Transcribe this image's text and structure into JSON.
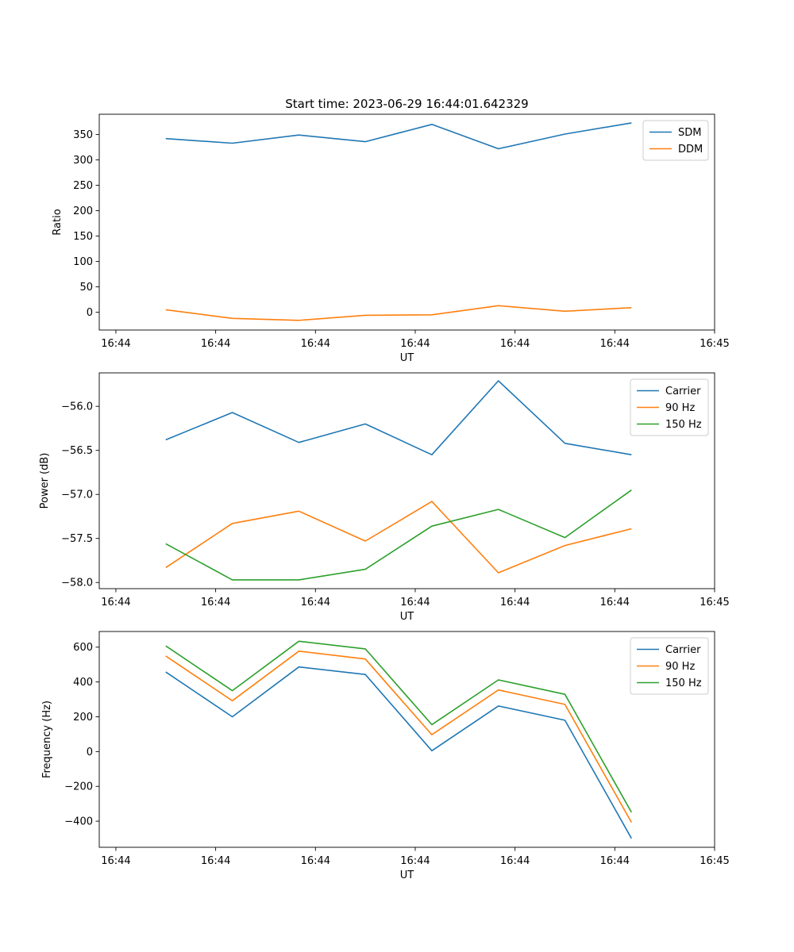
{
  "figure": {
    "title": "Start time: 2023-06-29 16:44:01.642329"
  },
  "colors": {
    "blue": "#1f77b4",
    "orange": "#ff7f0e",
    "green": "#2ca02c"
  },
  "chart_data": [
    {
      "type": "line",
      "title": "Start time: 2023-06-29 16:44:01.642329",
      "xlabel": "UT",
      "ylabel": "Ratio",
      "x": [
        1,
        2,
        3,
        4,
        5,
        6,
        7,
        8
      ],
      "xlim": [
        0,
        9.25
      ],
      "xticks": [
        0.25,
        1.75,
        3.25,
        4.75,
        6.25,
        7.75,
        9.25
      ],
      "xtick_labels": [
        "16:44",
        "16:44",
        "16:44",
        "16:44",
        "16:44",
        "16:44",
        "16:45"
      ],
      "ylim": [
        -35,
        390
      ],
      "yticks": [
        0,
        50,
        100,
        150,
        200,
        250,
        300,
        350
      ],
      "legend": "upper-right",
      "grid": false,
      "series": [
        {
          "name": "SDM",
          "color": "#1f77b4",
          "values": [
            342,
            333,
            349,
            336,
            370,
            322,
            351,
            373
          ]
        },
        {
          "name": "DDM",
          "color": "#ff7f0e",
          "values": [
            5,
            -12,
            -16,
            -6,
            -5,
            13,
            2,
            9
          ]
        }
      ]
    },
    {
      "type": "line",
      "xlabel": "UT",
      "ylabel": "Power (dB)",
      "x": [
        1,
        2,
        3,
        4,
        5,
        6,
        7,
        8
      ],
      "xlim": [
        0,
        9.25
      ],
      "xticks": [
        0.25,
        1.75,
        3.25,
        4.75,
        6.25,
        7.75,
        9.25
      ],
      "xtick_labels": [
        "16:44",
        "16:44",
        "16:44",
        "16:44",
        "16:44",
        "16:44",
        "16:45"
      ],
      "ylim": [
        -58.07,
        -55.62
      ],
      "yticks": [
        -58.0,
        -57.5,
        -57.0,
        -56.5,
        -56.0
      ],
      "ytick_labels": [
        "−58.0",
        "−57.5",
        "−57.0",
        "−56.5",
        "−56.0"
      ],
      "legend": "upper-right",
      "grid": false,
      "series": [
        {
          "name": "Carrier",
          "color": "#1f77b4",
          "values": [
            -56.38,
            -56.07,
            -56.41,
            -56.2,
            -56.55,
            -55.71,
            -56.42,
            -56.55
          ]
        },
        {
          "name": "90 Hz",
          "color": "#ff7f0e",
          "values": [
            -57.83,
            -57.33,
            -57.19,
            -57.53,
            -57.08,
            -57.89,
            -57.58,
            -57.39
          ]
        },
        {
          "name": "150 Hz",
          "color": "#2ca02c",
          "values": [
            -57.56,
            -57.97,
            -57.97,
            -57.85,
            -57.36,
            -57.17,
            -57.49,
            -56.95
          ]
        }
      ]
    },
    {
      "type": "line",
      "xlabel": "UT",
      "ylabel": "Frequency (Hz)",
      "x": [
        1,
        2,
        3,
        4,
        5,
        6,
        7,
        8
      ],
      "xlim": [
        0,
        9.25
      ],
      "xticks": [
        0.25,
        1.75,
        3.25,
        4.75,
        6.25,
        7.75,
        9.25
      ],
      "xtick_labels": [
        "16:44",
        "16:44",
        "16:44",
        "16:44",
        "16:44",
        "16:44",
        "16:45"
      ],
      "ylim": [
        -550,
        690
      ],
      "yticks": [
        -400,
        -200,
        0,
        200,
        400,
        600
      ],
      "ytick_labels": [
        "−400",
        "−200",
        "0",
        "200",
        "400",
        "600"
      ],
      "legend": "upper-right",
      "grid": false,
      "series": [
        {
          "name": "Carrier",
          "color": "#1f77b4",
          "values": [
            457,
            200,
            486,
            443,
            5,
            262,
            180,
            -499
          ]
        },
        {
          "name": "90 Hz",
          "color": "#ff7f0e",
          "values": [
            549,
            292,
            577,
            532,
            97,
            354,
            271,
            -407
          ]
        },
        {
          "name": "150 Hz",
          "color": "#2ca02c",
          "values": [
            607,
            350,
            634,
            590,
            155,
            412,
            329,
            -349
          ]
        }
      ]
    }
  ]
}
